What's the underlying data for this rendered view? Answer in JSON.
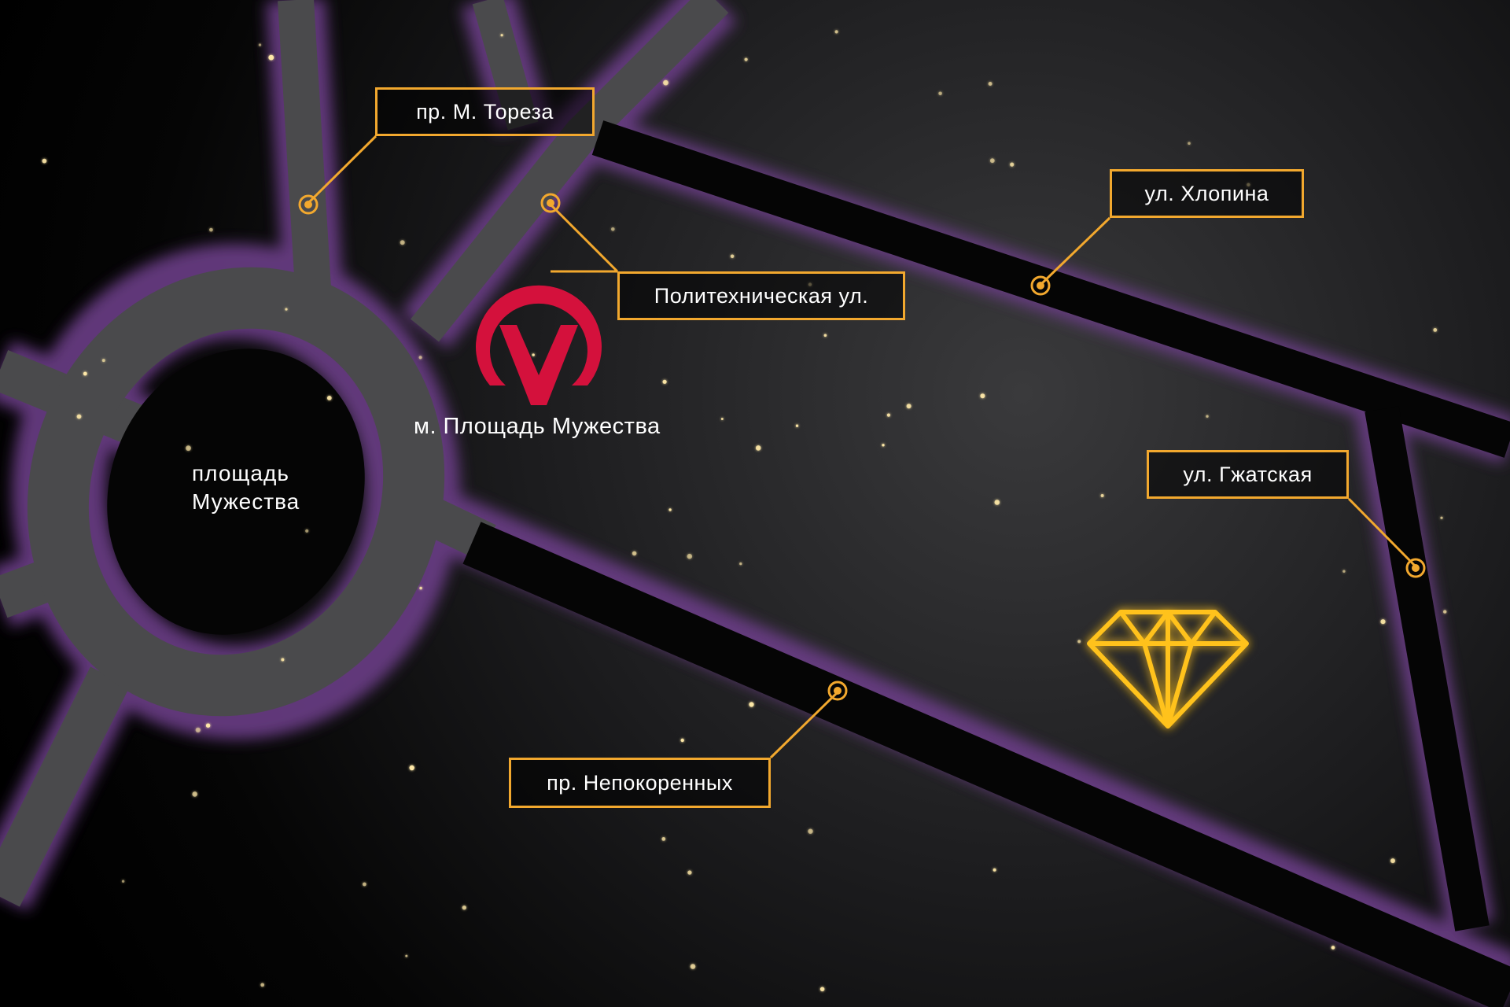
{
  "streets": {
    "toreza": "пр. М. Тореза",
    "polytechnicheskaya": "Политехническая ул.",
    "hlopina": "ул. Хлопина",
    "gzhatskaya": "ул. Гжатская",
    "nepokorennyh": "пр. Непокоренных"
  },
  "square": {
    "line1": "площадь",
    "line2": "Мужества"
  },
  "metro": {
    "station": "м. Площадь Мужества"
  },
  "colors": {
    "background": "#000000",
    "road": "#4a4a4c",
    "road_glow": "#6b3d86",
    "label_border": "#f2a82e",
    "metro_logo": "#d4113c",
    "diamond": "#ffc21a",
    "star": "#ffe9a8"
  },
  "icons": {
    "metro": "metro-logo-icon",
    "destination": "diamond-icon",
    "pin": "location-dot-icon"
  }
}
